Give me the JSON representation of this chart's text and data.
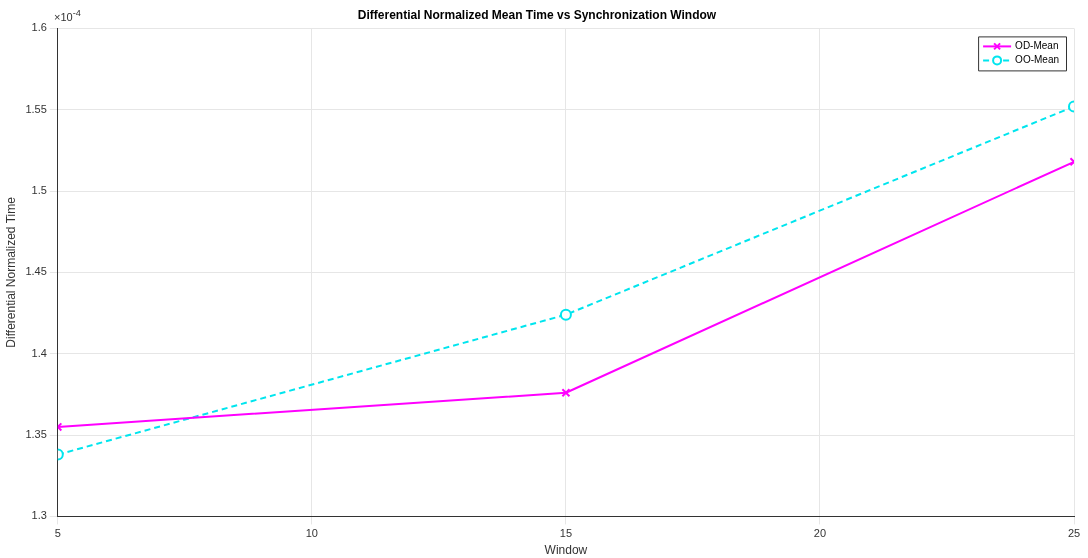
{
  "chart_data": {
    "type": "line",
    "title": "Differential Normalized Mean Time vs Synchronization Window",
    "xlabel": "Window",
    "ylabel": "Differential Normalized Time",
    "x": [
      5,
      15,
      25
    ],
    "series": [
      {
        "name": "OD-Mean",
        "color": "#ff00ff",
        "values": [
          1.355,
          1.376,
          1.518
        ],
        "marker": "cross",
        "line_style": "solid"
      },
      {
        "name": "OO-Mean",
        "color": "#00e5ee",
        "values": [
          1.338,
          1.424,
          1.552
        ],
        "marker": "circle",
        "line_style": "dashed"
      }
    ],
    "xlim": [
      5,
      25
    ],
    "xticks": [
      5,
      10,
      15,
      20,
      25
    ],
    "ylim": [
      1.3,
      1.6
    ],
    "yticks": [
      1.3,
      1.35,
      1.4,
      1.45,
      1.5,
      1.55,
      1.6
    ],
    "annotations": [
      "×10$^{-4}$"
    ],
    "grid": true,
    "legend": "top right"
  }
}
